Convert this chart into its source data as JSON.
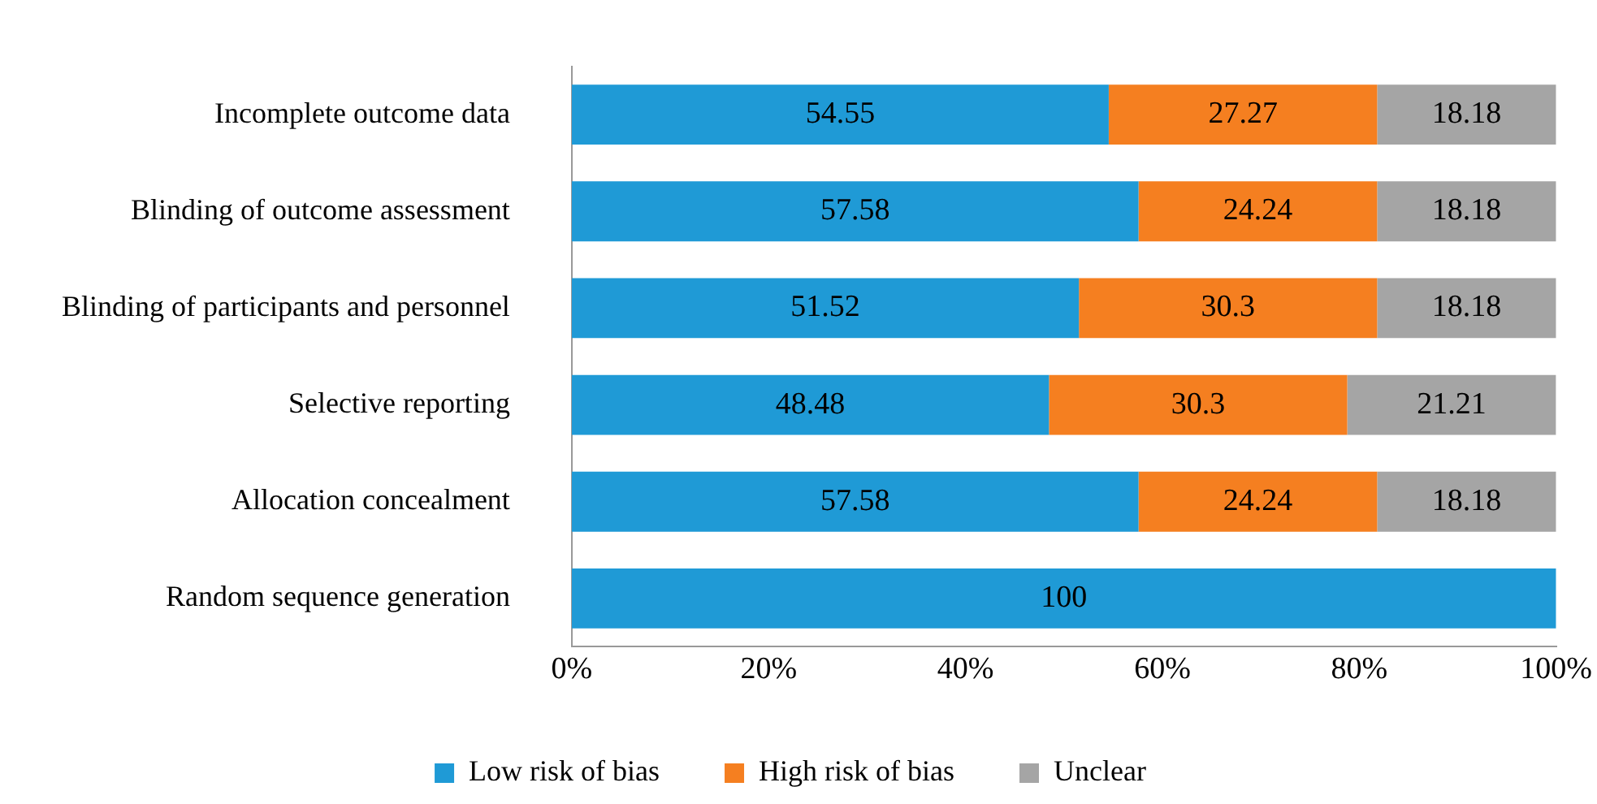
{
  "chart_data": {
    "type": "bar",
    "orientation": "horizontal",
    "stacked": true,
    "data_labels": true,
    "grid": false,
    "legend": "bottom",
    "categories": [
      "Incomplete outcome data",
      "Blinding of outcome assessment",
      "Blinding of participants and personnel",
      "Selective reporting",
      "Allocation concealment",
      "Random sequence generation"
    ],
    "series": [
      {
        "name": "Low risk of bias",
        "color": "#1f9ad6",
        "values": [
          54.55,
          57.58,
          51.52,
          48.48,
          57.58,
          100
        ]
      },
      {
        "name": "High risk of bias",
        "color": "#f57f20",
        "values": [
          27.27,
          24.24,
          30.3,
          30.3,
          24.24,
          null
        ]
      },
      {
        "name": "Unclear",
        "color": "#a5a5a5",
        "values": [
          18.18,
          18.18,
          18.18,
          21.21,
          18.18,
          null
        ]
      }
    ],
    "xlim": [
      0,
      100
    ],
    "xticks": [
      {
        "value": 0,
        "label": "0%"
      },
      {
        "value": 20,
        "label": "20%"
      },
      {
        "value": 40,
        "label": "40%"
      },
      {
        "value": 60,
        "label": "60%"
      },
      {
        "value": 80,
        "label": "80%"
      },
      {
        "value": 100,
        "label": "100%"
      }
    ]
  }
}
